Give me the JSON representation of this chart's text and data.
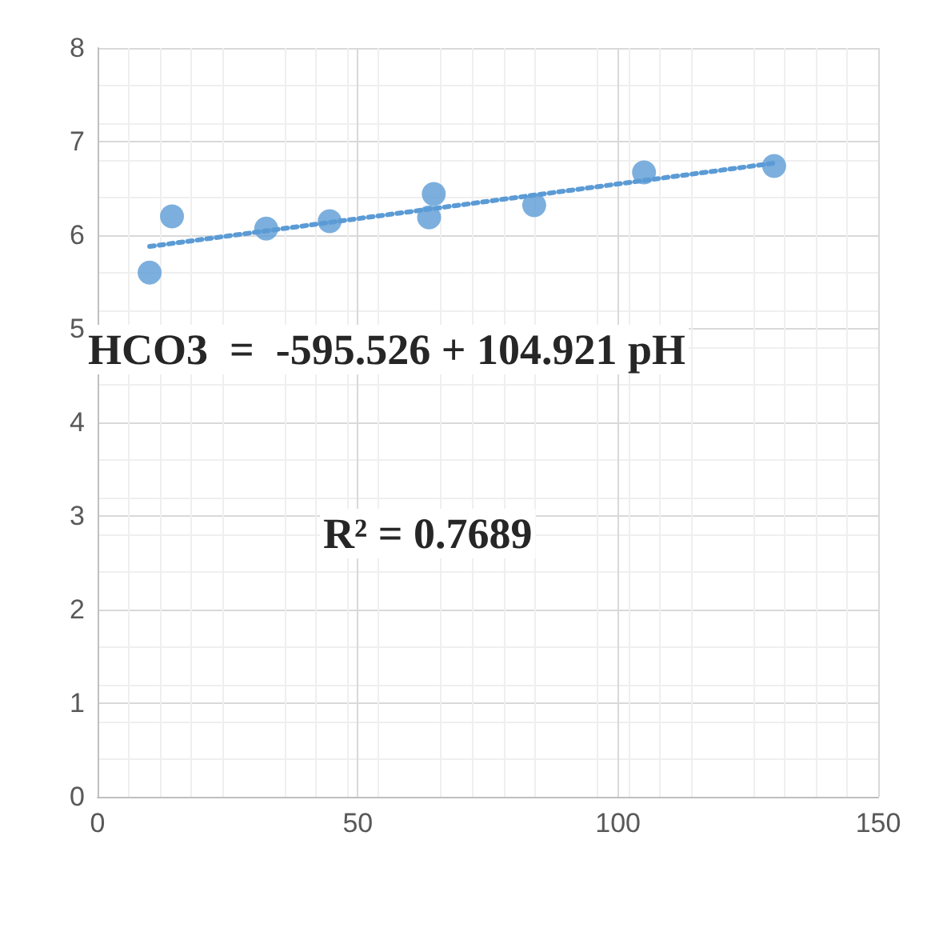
{
  "chart_data": {
    "type": "scatter",
    "xlim": [
      0,
      150
    ],
    "xticks": [
      0,
      50,
      100,
      150
    ],
    "ylim": [
      0,
      8
    ],
    "yticks": [
      0,
      1,
      2,
      3,
      4,
      5,
      6,
      7,
      8
    ],
    "grid": true,
    "marker": "circle",
    "x": [
      10,
      14.3,
      32.4,
      44.6,
      64.6,
      63.7,
      83.9,
      105,
      130
    ],
    "series": [
      {
        "color": "#5b9bd5",
        "values": [
          5.6,
          6.2,
          6.07,
          6.15,
          6.44,
          6.19,
          6.32,
          6.67,
          6.74
        ]
      },
      {
        "type": "line",
        "color": "#5b9bd5",
        "line_style": "dotted",
        "marker": "none",
        "x": [
          10,
          130
        ],
        "values": [
          5.88,
          6.77
        ]
      }
    ],
    "annotations": [
      "HCO3  =  -595.526 + 104.921 pH",
      "R² = 0.7689"
    ]
  }
}
